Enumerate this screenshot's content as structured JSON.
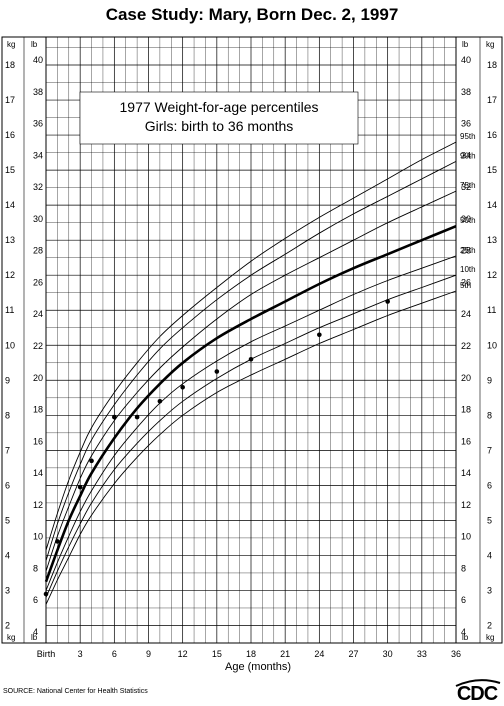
{
  "chart_data": {
    "type": "line",
    "title": "Case Study: Mary, Born Dec. 2, 1997",
    "inset_lines": [
      "1977 Weight-for-age percentiles",
      "Girls: birth to 36 months"
    ],
    "xlabel": "Age (months)",
    "left_unit": "kg",
    "right_unit": "lb",
    "xlim": [
      0,
      36
    ],
    "ylim_kg": [
      1.5,
      18.8
    ],
    "x_tick_labels": [
      {
        "x": 0,
        "label": "Birth"
      },
      {
        "x": 3,
        "label": "3"
      },
      {
        "x": 6,
        "label": "6"
      },
      {
        "x": 9,
        "label": "9"
      },
      {
        "x": 12,
        "label": "12"
      },
      {
        "x": 15,
        "label": "15"
      },
      {
        "x": 18,
        "label": "18"
      },
      {
        "x": 21,
        "label": "21"
      },
      {
        "x": 24,
        "label": "24"
      },
      {
        "x": 27,
        "label": "27"
      },
      {
        "x": 30,
        "label": "30"
      },
      {
        "x": 33,
        "label": "33"
      },
      {
        "x": 36,
        "label": "36"
      }
    ],
    "kg_ticks": [
      "2",
      "3",
      "4",
      "5",
      "6",
      "7",
      "8",
      "9",
      "10",
      "11",
      "12",
      "13",
      "14",
      "15",
      "16",
      "17",
      "18"
    ],
    "lb_ticks": [
      "4",
      "6",
      "8",
      "10",
      "12",
      "14",
      "16",
      "18",
      "20",
      "22",
      "24",
      "26",
      "28",
      "30",
      "32",
      "34",
      "36",
      "38",
      "40"
    ],
    "series": [
      {
        "name": "95th",
        "ages": [
          0,
          1,
          2,
          3,
          4,
          6,
          8,
          10,
          12,
          15,
          18,
          21,
          24,
          27,
          30,
          33,
          36
        ],
        "values": [
          4.15,
          5.2,
          6.15,
          6.95,
          7.65,
          8.65,
          9.5,
          10.25,
          10.85,
          11.65,
          12.4,
          13.05,
          13.65,
          14.2,
          14.75,
          15.3,
          15.8
        ]
      },
      {
        "name": "90th",
        "ages": [
          0,
          1,
          2,
          3,
          4,
          6,
          8,
          10,
          12,
          15,
          18,
          21,
          24,
          27,
          30,
          33,
          36
        ],
        "values": [
          3.85,
          4.9,
          5.8,
          6.6,
          7.3,
          8.3,
          9.15,
          9.9,
          10.5,
          11.3,
          12.0,
          12.6,
          13.2,
          13.75,
          14.25,
          14.75,
          15.25
        ]
      },
      {
        "name": "75th",
        "ages": [
          0,
          1,
          2,
          3,
          4,
          6,
          8,
          10,
          12,
          15,
          18,
          21,
          24,
          27,
          30,
          33,
          36
        ],
        "values": [
          3.55,
          4.55,
          5.4,
          6.2,
          6.85,
          7.85,
          8.65,
          9.35,
          9.95,
          10.75,
          11.45,
          12.0,
          12.5,
          13.0,
          13.5,
          13.95,
          14.4
        ]
      },
      {
        "name": "50th",
        "ages": [
          0,
          1,
          2,
          3,
          4,
          6,
          8,
          10,
          12,
          15,
          18,
          21,
          24,
          27,
          30,
          33,
          36
        ],
        "values": [
          3.25,
          4.15,
          5.0,
          5.7,
          6.35,
          7.35,
          8.2,
          8.9,
          9.5,
          10.2,
          10.75,
          11.25,
          11.75,
          12.2,
          12.6,
          13.0,
          13.4
        ]
      },
      {
        "name": "25th",
        "ages": [
          0,
          1,
          2,
          3,
          4,
          6,
          8,
          10,
          12,
          15,
          18,
          21,
          24,
          27,
          30,
          33,
          36
        ],
        "values": [
          3.0,
          3.8,
          4.55,
          5.25,
          5.85,
          6.85,
          7.65,
          8.35,
          8.9,
          9.55,
          10.1,
          10.55,
          11.0,
          11.45,
          11.85,
          12.2,
          12.55
        ]
      },
      {
        "name": "10th",
        "ages": [
          0,
          1,
          2,
          3,
          4,
          6,
          8,
          10,
          12,
          15,
          18,
          21,
          24,
          27,
          30,
          33,
          36
        ],
        "values": [
          2.8,
          3.55,
          4.25,
          4.9,
          5.5,
          6.45,
          7.2,
          7.85,
          8.4,
          9.05,
          9.6,
          10.05,
          10.5,
          10.9,
          11.3,
          11.65,
          12.0
        ]
      },
      {
        "name": "5th",
        "ages": [
          0,
          1,
          2,
          3,
          4,
          6,
          8,
          10,
          12,
          15,
          18,
          21,
          24,
          27,
          30,
          33,
          36
        ],
        "values": [
          2.6,
          3.3,
          3.95,
          4.6,
          5.15,
          6.05,
          6.8,
          7.45,
          8.0,
          8.65,
          9.15,
          9.6,
          10.05,
          10.45,
          10.85,
          11.2,
          11.55
        ]
      }
    ],
    "highlight_series": "50th",
    "points": {
      "ages": [
        0,
        1,
        3,
        4,
        6,
        8,
        10,
        12,
        15,
        18,
        24,
        30
      ],
      "values": [
        2.9,
        4.4,
        5.95,
        6.7,
        7.95,
        7.95,
        8.4,
        8.8,
        9.25,
        9.6,
        10.3,
        11.25
      ]
    },
    "source": "SOURCE: National Center for Health Statistics"
  },
  "logo": {
    "text": "CDC"
  }
}
